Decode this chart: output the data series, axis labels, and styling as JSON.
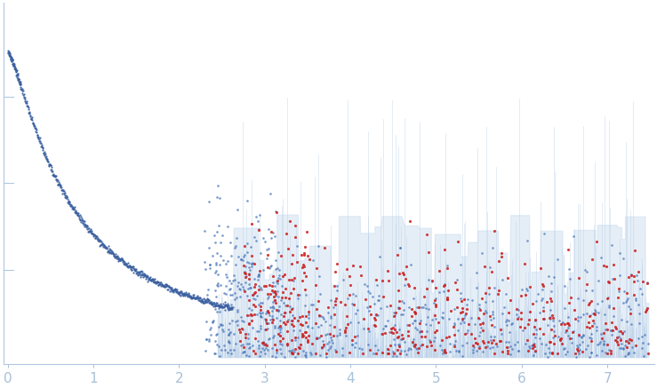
{
  "title": "",
  "xlabel": "",
  "ylabel": "",
  "xlim": [
    -0.05,
    7.55
  ],
  "ylim": [
    -0.02,
    1.02
  ],
  "x_ticks": [
    0,
    1,
    2,
    3,
    4,
    5,
    6,
    7
  ],
  "background_color": "#ffffff",
  "decay_color": "#3a5fa0",
  "stem_color": "#b8cfe8",
  "stem_fill_color": "#d0e0f0",
  "blue_dot_color": "#4472b8",
  "red_dot_color": "#cc2222",
  "axis_color": "#b0c8e0",
  "tick_label_color": "#a8c0d8",
  "seed": 12345,
  "n_decay": 700,
  "n_scatter_blue": 800,
  "n_scatter_red": 500,
  "n_stems": 1200
}
